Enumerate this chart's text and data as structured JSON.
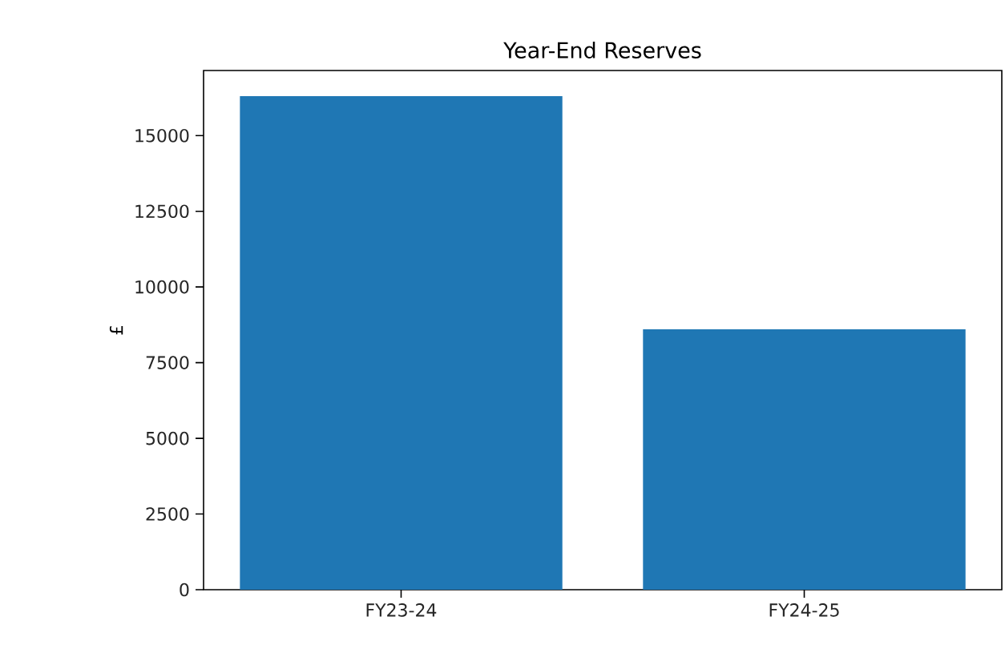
{
  "chart_data": {
    "type": "bar",
    "title": "Year-End Reserves",
    "ylabel": "£",
    "categories": [
      "FY23-24",
      "FY24-25"
    ],
    "values": [
      16300,
      8600
    ],
    "color": "#1f77b4",
    "ylim": [
      0,
      17150
    ],
    "yticks": [
      0,
      2500,
      5000,
      7500,
      10000,
      12500,
      15000
    ]
  }
}
